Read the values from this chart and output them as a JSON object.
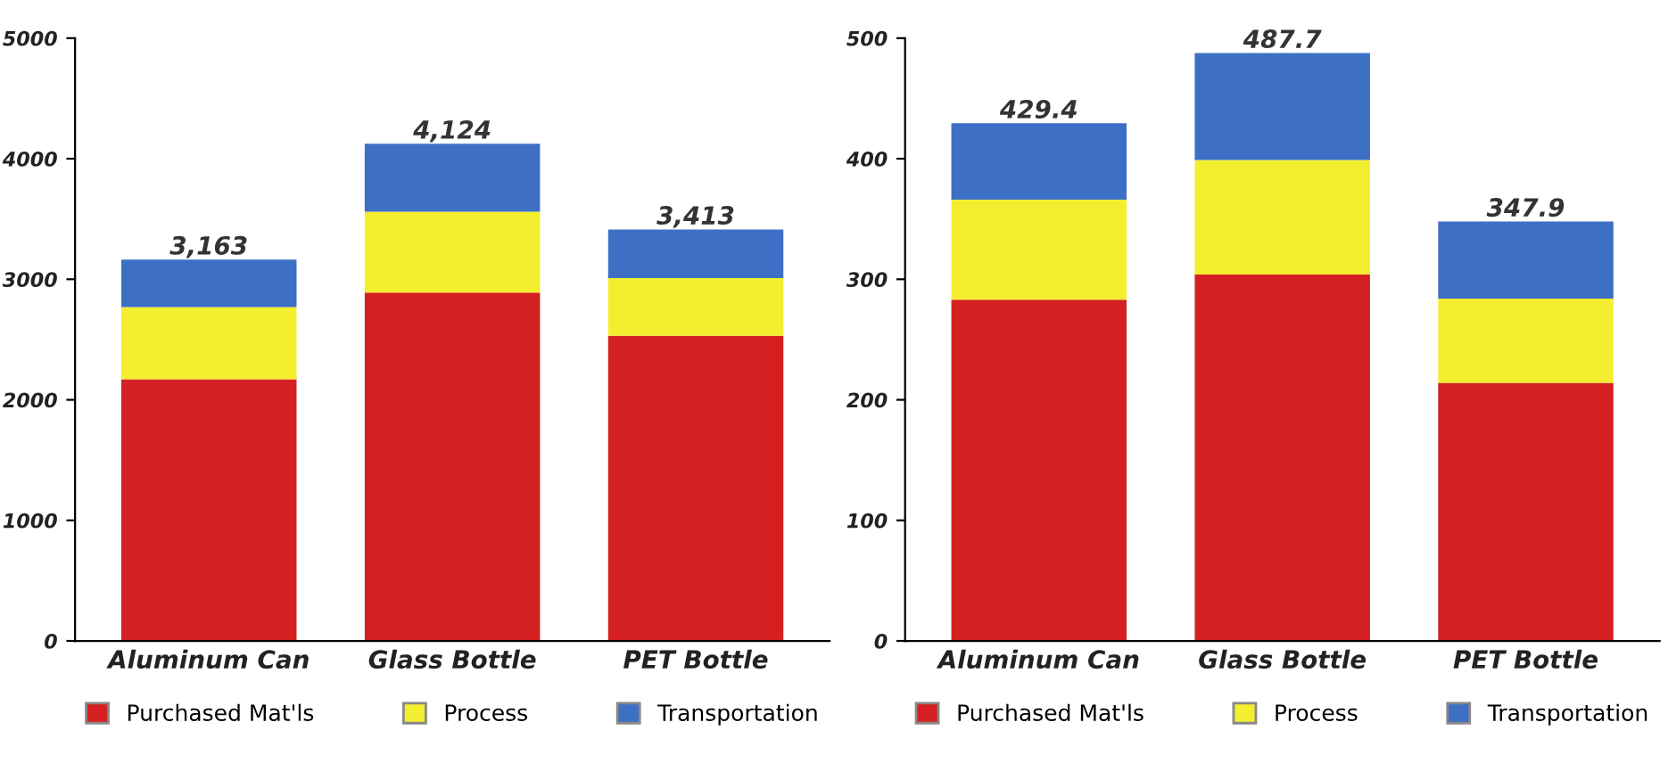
{
  "chart_data": [
    {
      "type": "bar",
      "stacked": true,
      "categories": [
        "Aluminum Can",
        "Glass Bottle",
        "PET Bottle"
      ],
      "series": [
        {
          "name": "Purchased Mat'ls",
          "color": "#d42020",
          "values": [
            2170,
            2890,
            2530
          ]
        },
        {
          "name": "Process",
          "color": "#f4ee30",
          "values": [
            600,
            670,
            480
          ]
        },
        {
          "name": "Transportation",
          "color": "#3d6fc4",
          "values": [
            393,
            564,
            403
          ]
        }
      ],
      "totals": [
        "3,163",
        "4,124",
        "3,413"
      ],
      "ylim": [
        0,
        5000
      ],
      "yticks": [
        0,
        1000,
        2000,
        3000,
        4000,
        5000
      ],
      "grid": false,
      "legend": "bottom"
    },
    {
      "type": "bar",
      "stacked": true,
      "categories": [
        "Aluminum Can",
        "Glass Bottle",
        "PET Bottle"
      ],
      "series": [
        {
          "name": "Purchased Mat'ls",
          "color": "#d42020",
          "values": [
            283,
            304,
            214
          ]
        },
        {
          "name": "Process",
          "color": "#f4ee30",
          "values": [
            83,
            95,
            70
          ]
        },
        {
          "name": "Transportation",
          "color": "#3d6fc4",
          "values": [
            63.4,
            88.7,
            63.9
          ]
        }
      ],
      "totals": [
        "429.4",
        "487.7",
        "347.9"
      ],
      "ylim": [
        0,
        500
      ],
      "yticks": [
        0,
        100,
        200,
        300,
        400,
        500
      ],
      "grid": false,
      "legend": "bottom"
    }
  ]
}
